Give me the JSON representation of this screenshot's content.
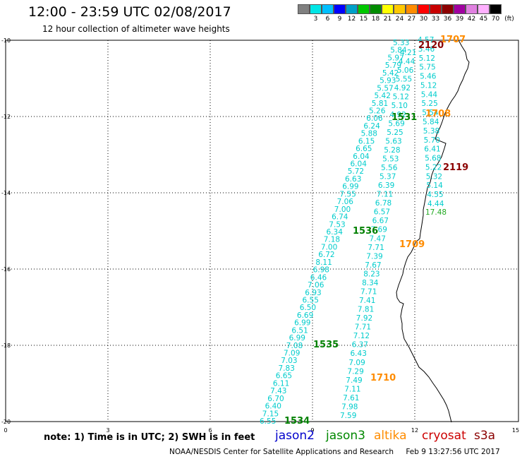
{
  "header": {
    "title": "12:00 - 23:59 UTC 02/08/2017",
    "subtitle": "12 hour collection of altimeter wave heights"
  },
  "colorbar": {
    "unit": "(ft)",
    "colors": [
      "#808080",
      "#00e6e6",
      "#00bfff",
      "#0000ff",
      "#00a0c8",
      "#00c800",
      "#008c00",
      "#ffff00",
      "#ffc800",
      "#ff8c00",
      "#ff0000",
      "#c80000",
      "#8c0000",
      "#a000a0",
      "#e080e0",
      "#ffb0ff",
      "#000000"
    ],
    "labels": [
      "3",
      "6",
      "9",
      "12",
      "15",
      "18",
      "21",
      "24",
      "27",
      "30",
      "33",
      "36",
      "39",
      "42",
      "45",
      "70"
    ]
  },
  "map": {
    "x_ticks": [
      "0",
      "3",
      "6",
      "9",
      "12",
      "15"
    ],
    "y_ticks": [
      "-10",
      "-12",
      "-14",
      "-16",
      "-18",
      "-20"
    ]
  },
  "tracks": {
    "track_a": {
      "color": "#00cccc",
      "values": [
        "5.33",
        "5.84",
        "5.97",
        "5.79",
        "5.42",
        "5.93",
        "5.57",
        "5.42",
        "5.81",
        "5.26",
        "6.06",
        "6.24",
        "5.88",
        "6.15",
        "6.65",
        "6.04",
        "6.04",
        "5.72",
        "6.63",
        "6.99",
        "7.55",
        "7.06",
        "7.00",
        "6.74",
        "7.53",
        "6.34",
        "7.18",
        "7.00",
        "6.72",
        "8.11",
        "6.98",
        "6.46",
        "7.06",
        "6.93",
        "6.55",
        "6.50",
        "6.69",
        "6.99",
        "6.51",
        "6.99",
        "7.08",
        "7.09",
        "7.03",
        "7.83",
        "6.65",
        "6.11",
        "7.43",
        "6.70",
        "6.40",
        "7.15",
        "6.55"
      ]
    },
    "track_b": {
      "color": "#00cccc",
      "values": [
        "4.21",
        "4.44",
        "5.06",
        "5.55",
        "4.92",
        "5.12",
        "5.10",
        "4.92",
        "5.69",
        "5.25",
        "5.63",
        "5.28",
        "5.53",
        "5.56",
        "5.37",
        "6.39",
        "7.11",
        "6.78",
        "6.57",
        "6.67",
        "7.69",
        "7.47",
        "7.71",
        "7.39",
        "7.67",
        "8.23",
        "8.34",
        "7.71",
        "7.41",
        "7.81",
        "7.92",
        "7.71",
        "7.12",
        "6.37",
        "6.43",
        "7.09",
        "7.29",
        "7.49",
        "7.11",
        "7.61",
        "7.98",
        "7.59"
      ]
    },
    "track_c": {
      "color": "#00cccc",
      "values": [
        "4.57",
        "3.46",
        "5.12",
        "5.75",
        "5.46",
        "5.12",
        "5.44",
        "5.25",
        "5.54",
        "5.84",
        "5.38",
        "5.70",
        "6.41",
        "5.68",
        "5.22",
        "5.32",
        "5.14",
        "4.55",
        "4.44"
      ]
    },
    "track_c_extra": {
      "value": "17.48",
      "color": "#22aa22"
    }
  },
  "passes": [
    {
      "label": "1707",
      "color": "#ff8c00"
    },
    {
      "label": "2120",
      "color": "#8b0000"
    },
    {
      "label": "1531",
      "color": "#008000"
    },
    {
      "label": "1708",
      "color": "#ff8c00"
    },
    {
      "label": "2119",
      "color": "#8b0000"
    },
    {
      "label": "1536",
      "color": "#008000"
    },
    {
      "label": "1709",
      "color": "#ff8c00"
    },
    {
      "label": "1535",
      "color": "#008000"
    },
    {
      "label": "1710",
      "color": "#ff8c00"
    },
    {
      "label": "1534",
      "color": "#008000"
    }
  ],
  "legend": {
    "note": "note: 1) Time is in UTC; 2) SWH is in feet",
    "missions": [
      {
        "name": "jason2",
        "color": "#0000cc"
      },
      {
        "name": "jason3",
        "color": "#008800"
      },
      {
        "name": "altika",
        "color": "#ff8c00"
      },
      {
        "name": "cryosat",
        "color": "#cc0000"
      },
      {
        "name": "s3a",
        "color": "#8b0000"
      }
    ]
  },
  "footer": {
    "credit": "NOAA/NESDIS Center for Satellite Applications and Research",
    "timestamp": "Feb  9 13:27:56 UTC 2017"
  }
}
